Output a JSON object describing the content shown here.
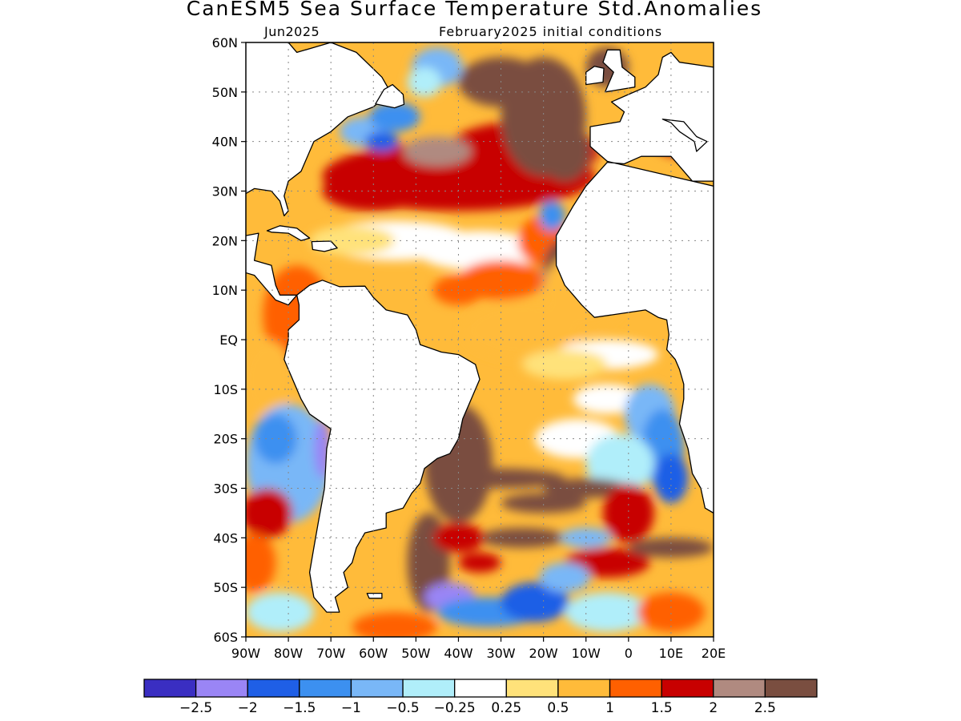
{
  "title": "CanESM5 Sea Surface Temperature Std.Anomalies",
  "subtitle_left": "Jun2025",
  "subtitle_right": "February2025 initial conditions",
  "map": {
    "lon_range": [
      -90,
      20
    ],
    "lat_range": [
      -60,
      60
    ],
    "lat_labels": [
      "60N",
      "50N",
      "40N",
      "30N",
      "20N",
      "10N",
      "EQ",
      "10S",
      "20S",
      "30S",
      "40S",
      "50S",
      "60S"
    ],
    "lat_values": [
      60,
      50,
      40,
      30,
      20,
      10,
      0,
      -10,
      -20,
      -30,
      -40,
      -50,
      -60
    ],
    "lon_labels": [
      "90W",
      "80W",
      "70W",
      "60W",
      "50W",
      "40W",
      "30W",
      "20W",
      "10W",
      "0",
      "10E",
      "20E"
    ],
    "lon_values": [
      -90,
      -80,
      -70,
      -60,
      -50,
      -40,
      -30,
      -20,
      -10,
      0,
      10,
      20
    ],
    "land_color": "#ffffff",
    "grid": "dotted"
  },
  "colorbar": {
    "colors": [
      "#3a2ec2",
      "#9a85f5",
      "#1f5fe6",
      "#3c90f0",
      "#79b7f7",
      "#b0eefa",
      "#ffffff",
      "#ffe27a",
      "#ffbb3a",
      "#ff6000",
      "#c80000",
      "#b08a80",
      "#7a4e40"
    ],
    "labels": [
      "−2.5",
      "−2",
      "−1.5",
      "−1",
      "−0.5",
      "−0.25",
      "0.25",
      "0.5",
      "1",
      "1.5",
      "2",
      "2.5"
    ],
    "values": [
      -2.5,
      -2,
      -1.5,
      -1,
      -0.5,
      -0.25,
      0.25,
      0.5,
      1,
      1.5,
      2,
      2.5
    ]
  },
  "anomaly_regions": [
    {
      "name": "subtropical-north-atlantic-warm",
      "lon": [
        -75,
        -5
      ],
      "lat": [
        25,
        45
      ],
      "level": 2.0
    },
    {
      "name": "northeast-atlantic-brown",
      "lon": [
        -30,
        -8
      ],
      "lat": [
        30,
        58
      ],
      "level": 2.5
    },
    {
      "name": "south-atlantic-brown-band",
      "lon": [
        -52,
        15
      ],
      "lat": [
        -50,
        -18
      ],
      "level": 2.5
    },
    {
      "name": "east-tropical-south-atlantic-cool",
      "lon": [
        -5,
        15
      ],
      "lat": [
        -35,
        -10
      ],
      "level": -1.5
    },
    {
      "name": "southern-ocean-cool",
      "lon": [
        -55,
        -20
      ],
      "lat": [
        -58,
        -45
      ],
      "level": -2.0
    },
    {
      "name": "south-pacific-coast-cool",
      "lon": [
        -90,
        -72
      ],
      "lat": [
        -40,
        -15
      ],
      "level": -1.0
    }
  ]
}
